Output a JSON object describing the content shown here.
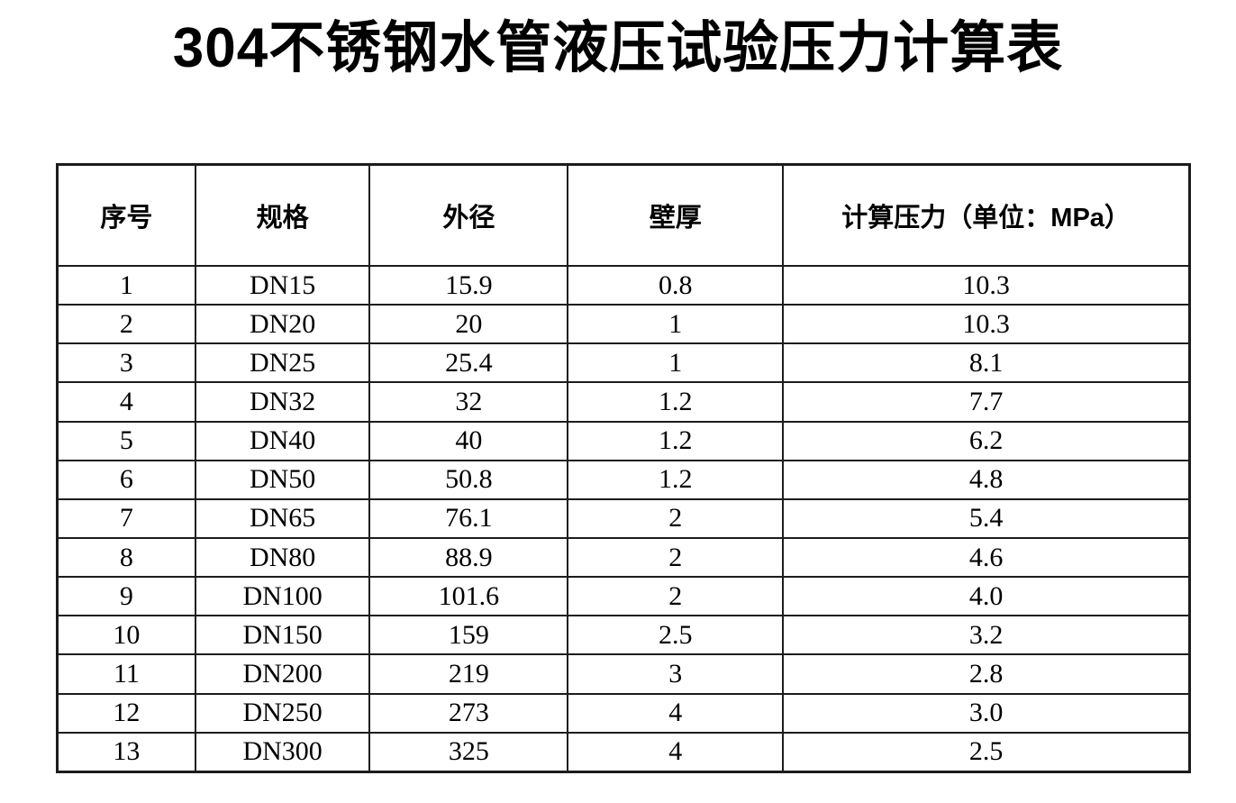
{
  "page": {
    "title": "304不锈钢水管液压试验压力计算表"
  },
  "table": {
    "headers": [
      "序号",
      "规格",
      "外径",
      "壁厚",
      "计算压力（单位：MPa）"
    ],
    "rows": [
      [
        "1",
        "DN15",
        "15.9",
        "0.8",
        "10.3"
      ],
      [
        "2",
        "DN20",
        "20",
        "1",
        "10.3"
      ],
      [
        "3",
        "DN25",
        "25.4",
        "1",
        "8.1"
      ],
      [
        "4",
        "DN32",
        "32",
        "1.2",
        "7.7"
      ],
      [
        "5",
        "DN40",
        "40",
        "1.2",
        "6.2"
      ],
      [
        "6",
        "DN50",
        "50.8",
        "1.2",
        "4.8"
      ],
      [
        "7",
        "DN65",
        "76.1",
        "2",
        "5.4"
      ],
      [
        "8",
        "DN80",
        "88.9",
        "2",
        "4.6"
      ],
      [
        "9",
        "DN100",
        "101.6",
        "2",
        "4.0"
      ],
      [
        "10",
        "DN150",
        "159",
        "2.5",
        "3.2"
      ],
      [
        "11",
        "DN200",
        "219",
        "3",
        "2.8"
      ],
      [
        "12",
        "DN250",
        "273",
        "4",
        "3.0"
      ],
      [
        "13",
        "DN300",
        "325",
        "4",
        "2.5"
      ]
    ]
  },
  "colors": {
    "text": "#000000",
    "border": "#1c1c1c",
    "background": "#ffffff"
  }
}
